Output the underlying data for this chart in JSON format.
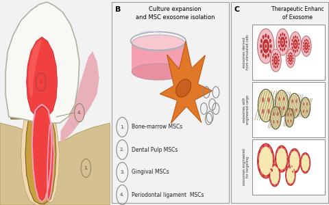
{
  "bg_color": "#f2f2f2",
  "panel_A_bg": "#f5f2ee",
  "panel_B_bg": "#e8e8e8",
  "panel_C_bg": "#e8e8e8",
  "title_B": "Culture expansion\nand MSC exosome isolation",
  "title_C": "Therapeutic Enhanc\nof Exosome",
  "label_B": "B",
  "label_C": "C",
  "items_B": [
    "Bone-marrow MSCs",
    "Dental Pulp MSCs",
    "Gingival MSCs",
    "Periodontal ligament  MSCs"
  ],
  "items_C": [
    "exosomes derived\nfrom stimulated cells",
    "exosomes with\nengineered cargo",
    "exosomes engineered\nfor targeting"
  ],
  "tooth_enamel": "#f8f8f4",
  "tooth_dentin": "#c8a040",
  "tooth_pulp_bright": "#f04040",
  "tooth_pulp_dark": "#c03030",
  "tooth_gum": "#e8a0b0",
  "tooth_bone": "#d4c090",
  "tooth_pdl": "#f0d8b0",
  "tooth_outline": "#7a6020",
  "vesicle_color": "#f0f0f0",
  "vesicle_edge": "#888888",
  "cell_orange": "#e07828",
  "cell_orange_dark": "#c05818",
  "nucleus_color": "#c86020",
  "dish_pink": "#f4a0b0",
  "dish_light": "#f8c8d0",
  "dish_rim": "#c0c0d0"
}
